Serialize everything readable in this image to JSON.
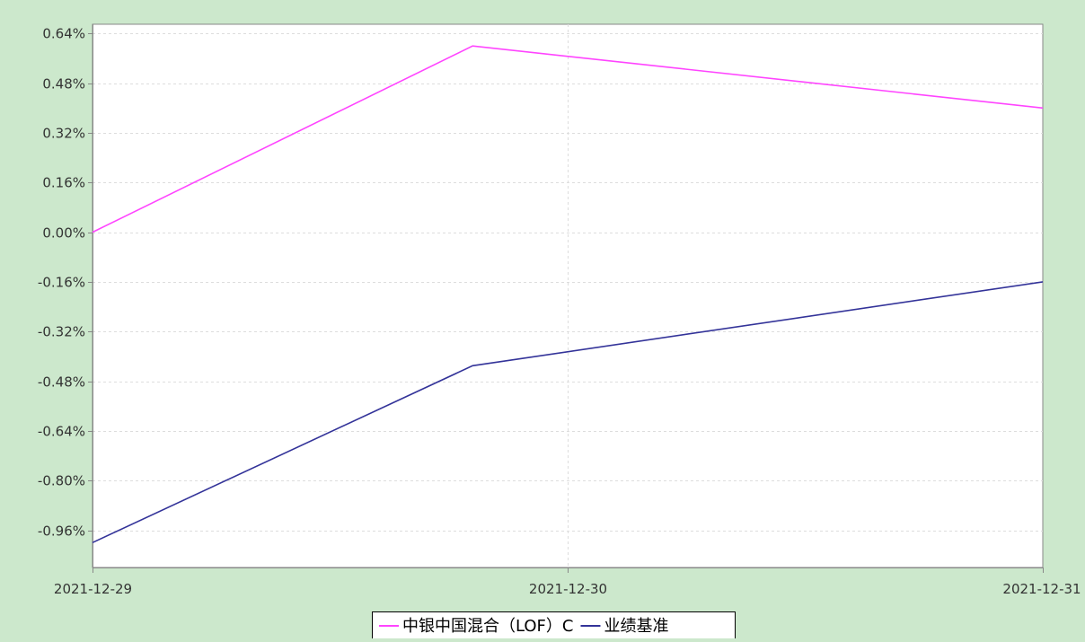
{
  "chart_data": {
    "type": "line",
    "title": "",
    "xlabel": "",
    "ylabel": "",
    "x_ticks": [
      "2021-12-29",
      "2021-12-30",
      "2021-12-31"
    ],
    "ylim": [
      -1.08,
      0.67
    ],
    "y_ticks": [
      0.64,
      0.48,
      0.32,
      0.16,
      0.0,
      -0.16,
      -0.32,
      -0.48,
      -0.64,
      -0.8,
      -0.96
    ],
    "y_tick_labels": [
      "0.64%",
      "0.48%",
      "0.32%",
      "0.16%",
      "0.00%",
      "-0.16%",
      "-0.32%",
      "-0.48%",
      "-0.64%",
      "-0.80%",
      "-0.96%"
    ],
    "grid": true,
    "legend_position": "bottom-center",
    "series": [
      {
        "name": "中银中国混合（LOF）C",
        "color": "#ff44ff",
        "points": [
          {
            "x": "2021-12-29",
            "y": 0.0
          },
          {
            "x": "2021-12-29.8",
            "y": 0.6
          },
          {
            "x": "2021-12-31",
            "y": 0.4
          }
        ]
      },
      {
        "name": "业绩基准",
        "color": "#333399",
        "points": [
          {
            "x": "2021-12-29",
            "y": -1.0
          },
          {
            "x": "2021-12-29.8",
            "y": -0.43
          },
          {
            "x": "2021-12-31",
            "y": -0.16
          }
        ]
      }
    ],
    "background_color": "#cce8cc",
    "plot_background_color": "#ffffff"
  }
}
